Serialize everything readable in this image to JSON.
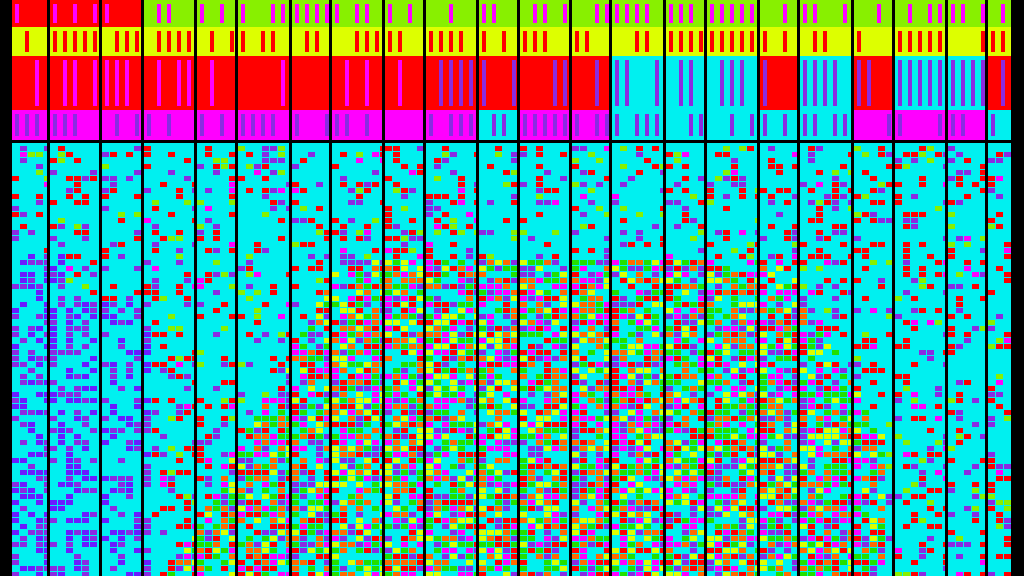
{
  "palette": {
    "black": "#000000",
    "red": "#ff0000",
    "cyan": "#00f0f0",
    "magenta": "#ff00ff",
    "purple": "#8a2be2",
    "violet": "#6a1cff",
    "lime": "#88f000",
    "yellow": "#ddff00",
    "green": "#22e000",
    "orange": "#ff6a00",
    "pink": "#ff5090"
  },
  "regions": {
    "header_band_colors": [
      "lime",
      "yellow",
      "red",
      "magenta"
    ],
    "body_base_color": "cyan",
    "hot_zone_colors": [
      "red",
      "yellow",
      "green",
      "purple",
      "magenta",
      "orange"
    ],
    "left_zone_colors": [
      "purple",
      "violet",
      "cyan"
    ]
  }
}
